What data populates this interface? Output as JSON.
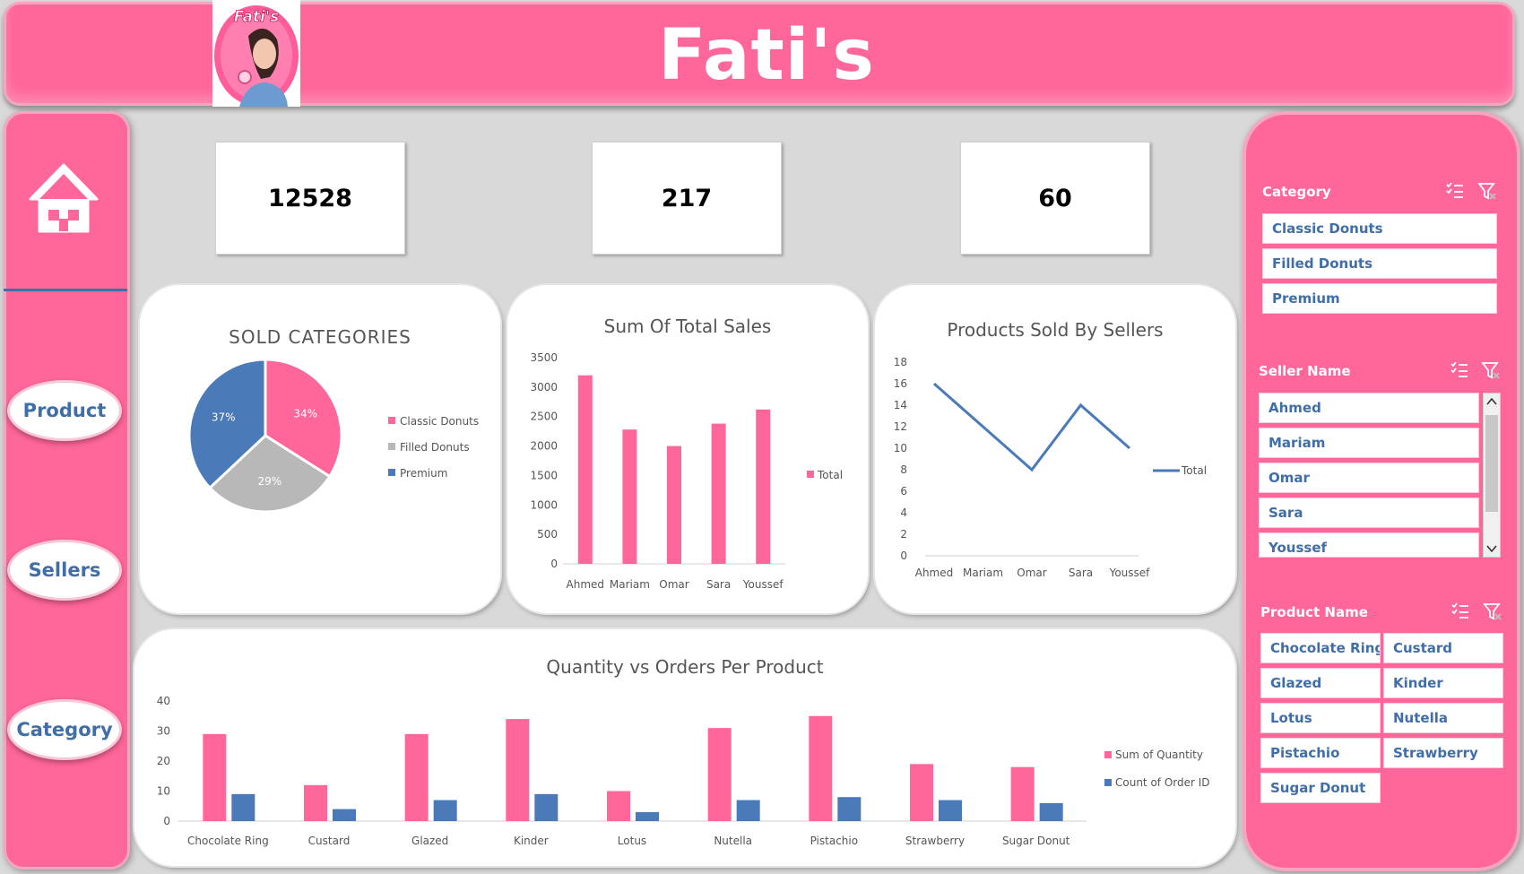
{
  "header": {
    "title": "Fati's",
    "logo_text": "Fati's"
  },
  "nav": {
    "items": [
      {
        "label": "Product"
      },
      {
        "label": "Sellers"
      },
      {
        "label": "Category"
      }
    ]
  },
  "kpis": [
    {
      "value": "12528"
    },
    {
      "value": "217"
    },
    {
      "value": "60"
    }
  ],
  "slicers": {
    "category": {
      "title": "Category",
      "items": [
        "Classic Donuts",
        "Filled Donuts",
        "Premium"
      ]
    },
    "seller": {
      "title": "Seller Name",
      "items": [
        "Ahmed",
        "Mariam",
        "Omar",
        "Sara",
        "Youssef"
      ]
    },
    "product": {
      "title": "Product Name",
      "items": [
        "Chocolate Ring",
        "Custard",
        "Glazed",
        "Kinder",
        "Lotus",
        "Nutella",
        "Pistachio",
        "Strawberry",
        "Sugar Donut"
      ]
    }
  },
  "colors": {
    "pink": "#ff6699",
    "blue": "#4a7ab8",
    "grey": "#b8b8b8"
  },
  "chart_data": [
    {
      "type": "pie",
      "title": "SOLD CATEGORIES",
      "categories": [
        "Classic Donuts",
        "Filled Donuts",
        "Premium"
      ],
      "values": [
        34,
        29,
        37
      ],
      "labels": [
        "34%",
        "29%",
        "37%"
      ],
      "colors": [
        "#ff6699",
        "#b8b8b8",
        "#4a7ab8"
      ],
      "legend": "right"
    },
    {
      "type": "bar",
      "title": "Sum Of Total Sales",
      "categories": [
        "Ahmed",
        "Mariam",
        "Omar",
        "Sara",
        "Youssef"
      ],
      "series": [
        {
          "name": "Total",
          "values": [
            3200,
            2280,
            2000,
            2380,
            2620
          ]
        }
      ],
      "ylim": [
        0,
        3500
      ],
      "yticks": [
        "0",
        "500",
        "1000",
        "1500",
        "2000",
        "2500",
        "3000",
        "3500"
      ],
      "legend": "right"
    },
    {
      "type": "line",
      "title": "Products Sold By Sellers",
      "categories": [
        "Ahmed",
        "Mariam",
        "Omar",
        "Sara",
        "Youssef"
      ],
      "series": [
        {
          "name": "Total",
          "values": [
            16,
            12,
            8,
            14,
            10
          ]
        }
      ],
      "ylim": [
        0,
        18
      ],
      "yticks": [
        "0",
        "2",
        "4",
        "6",
        "8",
        "10",
        "12",
        "14",
        "16",
        "18"
      ],
      "legend": "right"
    },
    {
      "type": "bar",
      "title": "Quantity vs Orders Per Product",
      "categories": [
        "Chocolate Ring",
        "Custard",
        "Glazed",
        "Kinder",
        "Lotus",
        "Nutella",
        "Pistachio",
        "Strawberry",
        "Sugar Donut"
      ],
      "series": [
        {
          "name": "Sum of Quantity",
          "values": [
            29,
            12,
            29,
            34,
            10,
            31,
            35,
            19,
            18
          ]
        },
        {
          "name": "Count of Order ID",
          "values": [
            9,
            4,
            7,
            9,
            3,
            7,
            8,
            7,
            6
          ]
        }
      ],
      "ylim": [
        0,
        40
      ],
      "yticks": [
        "0",
        "10",
        "20",
        "30",
        "40"
      ],
      "legend": "right"
    }
  ]
}
